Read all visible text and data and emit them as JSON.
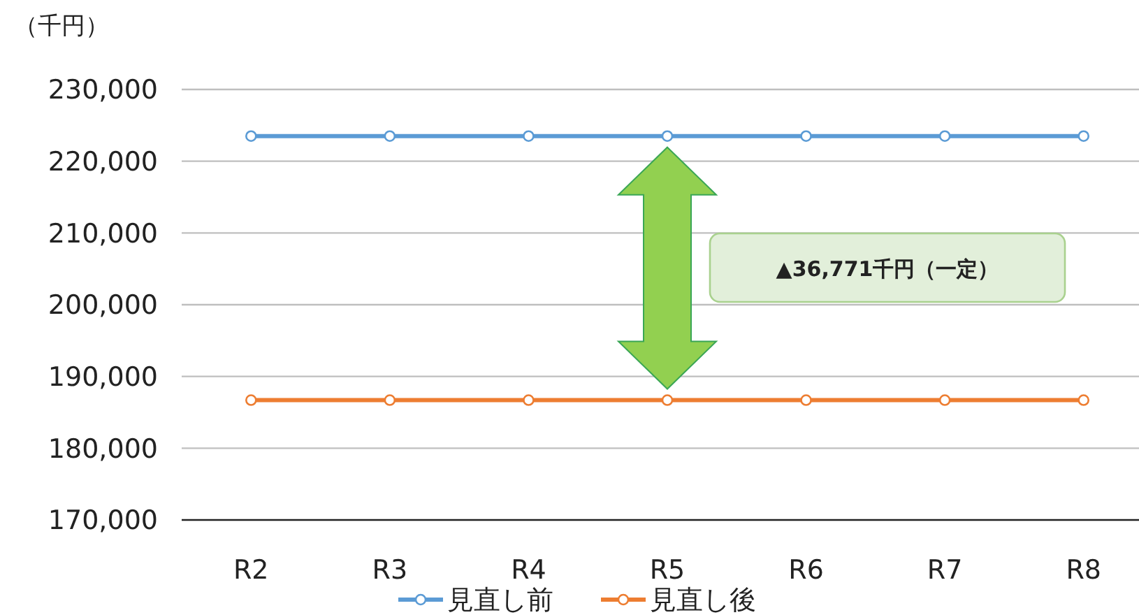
{
  "chart_data": {
    "type": "line",
    "ylabel": "（千円）",
    "categories": [
      "R2",
      "R3",
      "R4",
      "R5",
      "R6",
      "R7",
      "R8"
    ],
    "series": [
      {
        "name": "見直し前",
        "color": "#5b9bd5",
        "values": [
          223500,
          223500,
          223500,
          223500,
          223500,
          223500,
          223500
        ]
      },
      {
        "name": "見直し後",
        "color": "#ed7d31",
        "values": [
          186700,
          186700,
          186700,
          186700,
          186700,
          186700,
          186700
        ]
      }
    ],
    "ylim": [
      170000,
      230000
    ],
    "yticks": [
      {
        "value": 170000,
        "label": "170,000"
      },
      {
        "value": 180000,
        "label": "180,000"
      },
      {
        "value": 190000,
        "label": "190,000"
      },
      {
        "value": 200000,
        "label": "200,000"
      },
      {
        "value": 210000,
        "label": "210,000"
      },
      {
        "value": 220000,
        "label": "220,000"
      },
      {
        "value": 230000,
        "label": "230,000"
      }
    ],
    "grid": "y",
    "marker": "circle",
    "line_style": "solid",
    "legend": "bottom",
    "annotations": [
      "▲36,771千円（一定）"
    ]
  }
}
